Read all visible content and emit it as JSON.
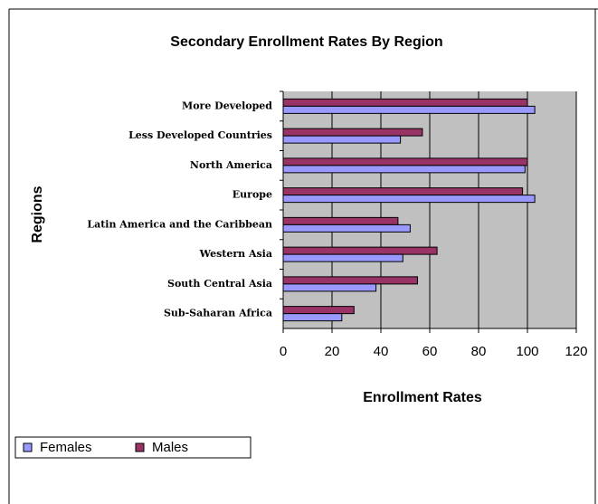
{
  "chart_data": {
    "type": "hbar",
    "title": "Secondary Enrollment Rates By Region",
    "xlabel": "Enrollment Rates",
    "ylabel": "Regions",
    "categories": [
      "More Developed",
      "Less Developed Countries",
      "North America",
      "Europe",
      "Latin America and the Caribbean",
      "Western Asia",
      "South Central Asia",
      "Sub-Saharan Africa"
    ],
    "series": [
      {
        "name": "Females",
        "color": "#9999ff",
        "values": [
          103,
          48,
          99,
          103,
          52,
          49,
          38,
          24
        ]
      },
      {
        "name": "Males",
        "color": "#993366",
        "values": [
          100,
          57,
          100,
          98,
          47,
          63,
          55,
          29
        ]
      }
    ],
    "xlim": [
      0,
      120
    ],
    "xticks": [
      0,
      20,
      40,
      60,
      80,
      100,
      120
    ],
    "grid": true,
    "legend": "bottom-left"
  }
}
